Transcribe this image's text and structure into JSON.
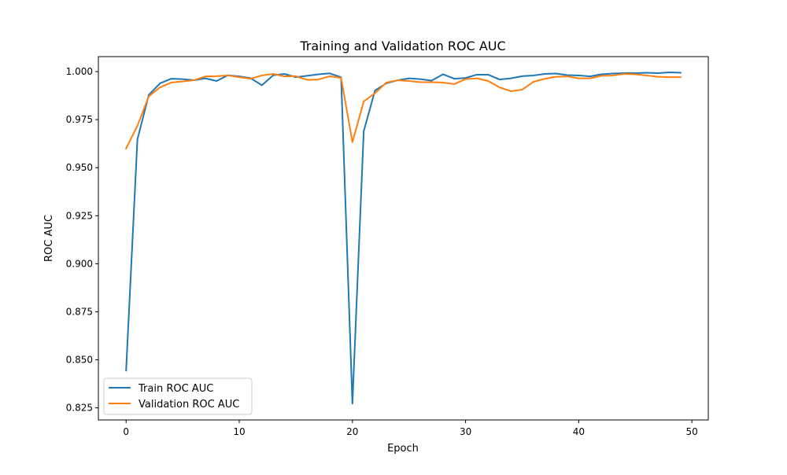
{
  "chart_data": {
    "type": "line",
    "title": "Training and Validation ROC AUC",
    "xlabel": "Epoch",
    "ylabel": "ROC AUC",
    "xlim": [
      -2.45,
      51.45
    ],
    "ylim": [
      0.8187,
      1.0078
    ],
    "x_ticks": [
      0,
      10,
      20,
      30,
      40,
      50
    ],
    "x_tick_labels": [
      "0",
      "10",
      "20",
      "30",
      "40",
      "50"
    ],
    "y_ticks": [
      0.825,
      0.85,
      0.875,
      0.9,
      0.925,
      0.95,
      0.975,
      1.0
    ],
    "y_tick_labels": [
      "0.825",
      "0.850",
      "0.875",
      "0.900",
      "0.925",
      "0.950",
      "0.975",
      "1.000"
    ],
    "grid": false,
    "legend_position": "lower-left",
    "x": [
      0,
      1,
      2,
      3,
      4,
      5,
      6,
      7,
      8,
      9,
      10,
      11,
      12,
      13,
      14,
      15,
      16,
      17,
      18,
      19,
      20,
      21,
      22,
      23,
      24,
      25,
      26,
      27,
      28,
      29,
      30,
      31,
      32,
      33,
      34,
      35,
      36,
      37,
      38,
      39,
      40,
      41,
      42,
      43,
      44,
      45,
      46,
      47,
      48,
      49
    ],
    "series": [
      {
        "name": "Train ROC AUC",
        "color": "#1f77b4",
        "values": [
          0.8444,
          0.9647,
          0.9878,
          0.9939,
          0.9963,
          0.9961,
          0.9955,
          0.9965,
          0.9951,
          0.9981,
          0.9975,
          0.9966,
          0.9929,
          0.9981,
          0.9988,
          0.9971,
          0.9978,
          0.9986,
          0.9991,
          0.9971,
          0.8272,
          0.969,
          0.9902,
          0.9939,
          0.9955,
          0.9965,
          0.9961,
          0.9953,
          0.9986,
          0.9963,
          0.9967,
          0.9984,
          0.9984,
          0.9959,
          0.9965,
          0.9976,
          0.998,
          0.9988,
          0.999,
          0.9982,
          0.998,
          0.9975,
          0.9986,
          0.999,
          0.9992,
          0.9992,
          0.9994,
          0.9992,
          0.9996,
          0.9994
        ]
      },
      {
        "name": "Validation ROC AUC",
        "color": "#ff7f0e",
        "values": [
          0.96,
          0.9718,
          0.9871,
          0.9918,
          0.9943,
          0.9949,
          0.9955,
          0.9975,
          0.9976,
          0.998,
          0.9971,
          0.9963,
          0.998,
          0.9988,
          0.9975,
          0.9976,
          0.9957,
          0.9959,
          0.9976,
          0.9967,
          0.9633,
          0.9845,
          0.9888,
          0.9943,
          0.9955,
          0.9951,
          0.9945,
          0.9945,
          0.9943,
          0.9935,
          0.9961,
          0.9965,
          0.9951,
          0.9918,
          0.9898,
          0.9906,
          0.9947,
          0.9963,
          0.9973,
          0.9975,
          0.9965,
          0.9965,
          0.9978,
          0.998,
          0.9988,
          0.9986,
          0.998,
          0.9973,
          0.9971,
          0.9971
        ]
      }
    ]
  }
}
